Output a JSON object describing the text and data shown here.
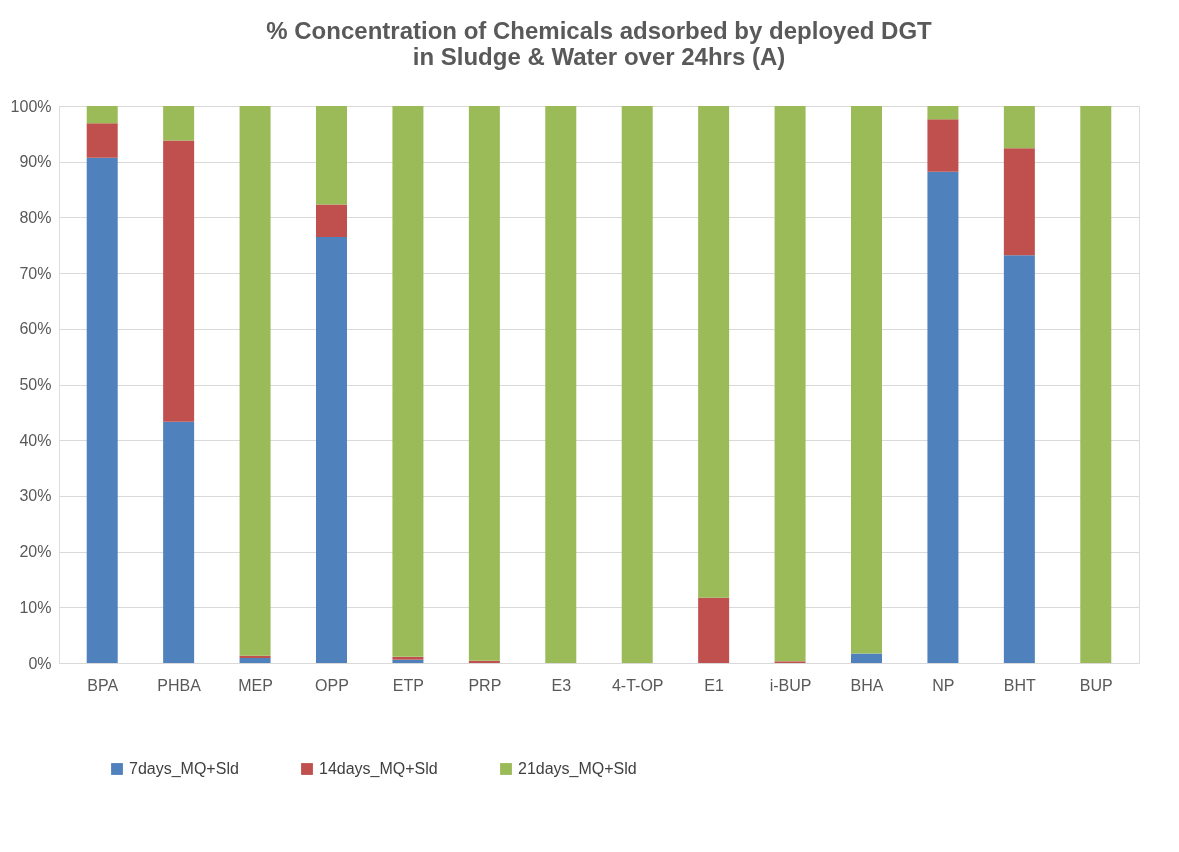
{
  "chart_data": {
    "type": "bar",
    "stacked": true,
    "title": "% Concentration of Chemicals adsorbed by deployed DGT  in Sludge & Water over 24hrs (A)",
    "categories": [
      "BPA",
      "PHBA",
      "MEP",
      "OPP",
      "ETP",
      "PRP",
      "E3",
      "4-T-OP",
      "E1",
      "i-BUP",
      "BHA",
      "NP",
      "BHT",
      "BUP"
    ],
    "series": [
      {
        "name": "7days_MQ+Sld",
        "color": "#4f81bd",
        "values": [
          90.7,
          43.3,
          0.9,
          76.5,
          0.6,
          0,
          0,
          0,
          0,
          0,
          1.7,
          88.2,
          73.2,
          0
        ]
      },
      {
        "name": "14days_MQ+Sld",
        "color": "#c0504d",
        "values": [
          6.2,
          50.5,
          0.4,
          5.8,
          0.5,
          0.4,
          0,
          0,
          11.7,
          0.3,
          0,
          9.4,
          19.2,
          0
        ]
      },
      {
        "name": "21days_MQ+Sld",
        "color": "#9bbb59",
        "values": [
          3.1,
          6.2,
          98.7,
          17.7,
          98.9,
          99.6,
          100,
          100,
          88.3,
          99.7,
          98.3,
          2.4,
          7.6,
          100
        ]
      }
    ],
    "ylim": [
      0,
      100
    ],
    "yticks": [
      {
        "value": 0,
        "label": "0%"
      },
      {
        "value": 10,
        "label": "10%"
      },
      {
        "value": 20,
        "label": "20%"
      },
      {
        "value": 30,
        "label": "30%"
      },
      {
        "value": 40,
        "label": "40%"
      },
      {
        "value": 50,
        "label": "50%"
      },
      {
        "value": 60,
        "label": "60%"
      },
      {
        "value": 70,
        "label": "70%"
      },
      {
        "value": 80,
        "label": "80%"
      },
      {
        "value": 90,
        "label": "90%"
      },
      {
        "value": 100,
        "label": "100%"
      }
    ],
    "grid": "y",
    "legend": "bottom"
  }
}
